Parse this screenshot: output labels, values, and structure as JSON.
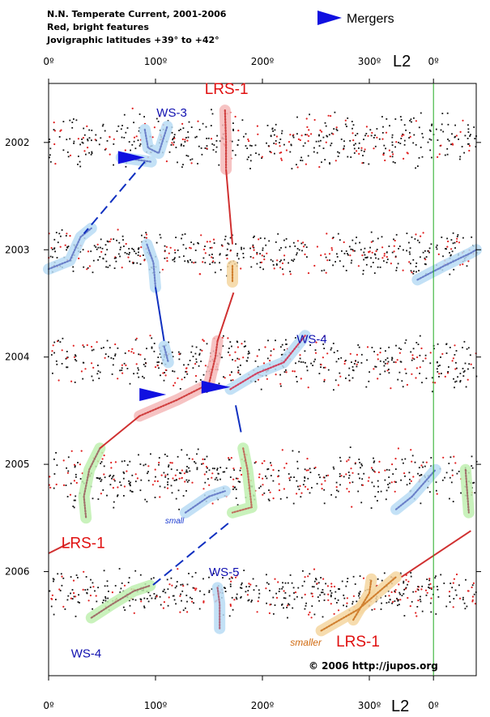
{
  "chart_data": {
    "type": "scatter",
    "header": {
      "line1": "N.N. Temperate Current, 2001-2006",
      "line2": "Red, bright features",
      "line3": "Jovigraphic latitudes +39° to +42°"
    },
    "legend": {
      "label": "Mergers",
      "color": "#1010e0"
    },
    "x_axis": {
      "name": "L2",
      "range": [
        0,
        400
      ],
      "ticks": [
        {
          "value": 0,
          "label": "0º"
        },
        {
          "value": 100,
          "label": "100º"
        },
        {
          "value": 200,
          "label": "200º"
        },
        {
          "value": 300,
          "label": "300º"
        },
        {
          "value": 360,
          "label": "0º"
        }
      ],
      "wrap_line_at": 360,
      "wrap_line_color": "#22aa22"
    },
    "y_axis": {
      "range": [
        2001.45,
        2006.97
      ],
      "ticks": [
        {
          "value": 2002,
          "label": "2002"
        },
        {
          "value": 2003,
          "label": "2003"
        },
        {
          "value": 2004,
          "label": "2004"
        },
        {
          "value": 2005,
          "label": "2005"
        },
        {
          "value": 2006,
          "label": "2006"
        }
      ]
    },
    "apparitions": [
      {
        "year_from": 2001.55,
        "year_to": 2002.4
      },
      {
        "year_from": 2002.7,
        "year_to": 2003.35
      },
      {
        "year_from": 2003.65,
        "year_to": 2004.45
      },
      {
        "year_from": 2004.7,
        "year_to": 2005.55
      },
      {
        "year_from": 2005.85,
        "year_to": 2006.55
      }
    ],
    "annotations": [
      {
        "id": "lrs1-top",
        "text": "LRS-1",
        "style": "red",
        "x": 146,
        "y": 2001.55
      },
      {
        "id": "ws3",
        "text": "WS-3",
        "style": "blue",
        "x": 101,
        "y": 2001.76
      },
      {
        "id": "ws4-mid",
        "text": "WS-4",
        "style": "blue",
        "x": 232,
        "y": 2003.87
      },
      {
        "id": "small",
        "text": "small",
        "style": "small-blue",
        "x": 109,
        "y": 2005.55
      },
      {
        "id": "lrs1-left",
        "text": "LRS-1",
        "style": "red",
        "x": 12,
        "y": 2005.78
      },
      {
        "id": "ws5",
        "text": "WS-5",
        "style": "blue",
        "x": 150,
        "y": 2006.04
      },
      {
        "id": "ws4-bottom",
        "text": "WS-4",
        "style": "blue",
        "x": 21,
        "y": 2006.8
      },
      {
        "id": "smaller",
        "text": "smaller",
        "style": "small-orange",
        "x": 226,
        "y": 2006.69
      },
      {
        "id": "lrs1-right",
        "text": "LRS-1",
        "style": "red",
        "x": 269,
        "y": 2006.7
      }
    ],
    "tracks": [
      {
        "name": "WS-3",
        "halo": "#b8dcf5",
        "color": "#6a7fc8",
        "points": [
          [
            90,
            2001.88
          ],
          [
            93,
            2002.05
          ],
          [
            103,
            2002.1
          ],
          [
            111,
            2001.85
          ]
        ]
      },
      {
        "name": "LRS-1",
        "halo": "#f5b8b8",
        "color": "#d04040",
        "points": [
          [
            165,
            2001.7
          ],
          [
            166,
            2002.0
          ],
          [
            166,
            2002.25
          ]
        ]
      },
      {
        "name": "merger-2002",
        "halo": "#b8dcf5",
        "color": "#6a7fc8",
        "points": [
          [
            68,
            2002.14
          ],
          [
            96,
            2002.18
          ]
        ]
      },
      {
        "name": "WS-3-2003",
        "halo": "#b8dcf5",
        "color": "#6a7fc8",
        "points": [
          [
            0,
            2003.18
          ],
          [
            20,
            2003.1
          ],
          [
            30,
            2002.88
          ],
          [
            40,
            2002.8
          ]
        ]
      },
      {
        "name": "WS-3b-2003",
        "halo": "#b8dcf5",
        "color": "#6a7fc8",
        "points": [
          [
            92,
            2002.95
          ],
          [
            98,
            2003.12
          ],
          [
            100,
            2003.35
          ]
        ]
      },
      {
        "name": "LRS-1-2003",
        "halo": "#f5d6a0",
        "color": "#d08030",
        "points": [
          [
            172,
            2003.15
          ],
          [
            172,
            2003.3
          ]
        ]
      },
      {
        "name": "WS-right-2003",
        "halo": "#b8dcf5",
        "color": "#6a7fc8",
        "points": [
          [
            345,
            2003.28
          ],
          [
            370,
            2003.15
          ],
          [
            395,
            2003.03
          ],
          [
            400,
            2003.0
          ]
        ]
      },
      {
        "name": "WS-4",
        "halo": "#b8dcf5",
        "color": "#d04060",
        "points": [
          [
            170,
            2004.3
          ],
          [
            195,
            2004.15
          ],
          [
            220,
            2004.05
          ],
          [
            240,
            2003.8
          ]
        ]
      },
      {
        "name": "WS-2004",
        "halo": "#b8dcf5",
        "color": "#6a7fc8",
        "points": [
          [
            108,
            2003.9
          ],
          [
            112,
            2004.05
          ]
        ]
      },
      {
        "name": "LRS-1-2004",
        "halo": "#f5b8b8",
        "color": "#d04040",
        "points": [
          [
            85,
            2004.55
          ],
          [
            120,
            2004.4
          ],
          [
            150,
            2004.25
          ],
          [
            156,
            2004.0
          ],
          [
            158,
            2003.85
          ]
        ]
      },
      {
        "name": "LRS-1-2005",
        "halo": "#bff0b0",
        "color": "#a0706a",
        "points": [
          [
            48,
            2004.85
          ],
          [
            38,
            2005.05
          ],
          [
            33,
            2005.3
          ],
          [
            35,
            2005.5
          ]
        ]
      },
      {
        "name": "WS-4-2005",
        "halo": "#bff0b0",
        "color": "#c07060",
        "points": [
          [
            182,
            2004.85
          ],
          [
            186,
            2005.05
          ],
          [
            190,
            2005.4
          ],
          [
            172,
            2005.45
          ]
        ]
      },
      {
        "name": "small-2005",
        "halo": "#b8dcf5",
        "color": "#6a7fc8",
        "points": [
          [
            128,
            2005.45
          ],
          [
            150,
            2005.3
          ],
          [
            165,
            2005.25
          ]
        ]
      },
      {
        "name": "WS-right-2005",
        "halo": "#b8dcf5",
        "color": "#6a7fc8",
        "points": [
          [
            325,
            2005.42
          ],
          [
            340,
            2005.3
          ],
          [
            362,
            2005.05
          ]
        ]
      },
      {
        "name": "LRS-1-2005r",
        "halo": "#bff0b0",
        "color": "#a0706a",
        "points": [
          [
            390,
            2005.05
          ],
          [
            393,
            2005.45
          ]
        ]
      },
      {
        "name": "WS-4-2006",
        "halo": "#bff0b0",
        "color": "#a0706a",
        "points": [
          [
            40,
            2006.43
          ],
          [
            60,
            2006.3
          ],
          [
            80,
            2006.18
          ],
          [
            95,
            2006.13
          ]
        ]
      },
      {
        "name": "WS-5",
        "halo": "#b8dcf5",
        "color": "#b06880",
        "points": [
          [
            158,
            2006.15
          ],
          [
            160,
            2006.3
          ],
          [
            160,
            2006.53
          ]
        ]
      },
      {
        "name": "LRS-1-2006",
        "halo": "#f5d6a0",
        "color": "#d08030",
        "points": [
          [
            255,
            2006.55
          ],
          [
            290,
            2006.35
          ],
          [
            325,
            2006.05
          ]
        ]
      },
      {
        "name": "LRS-1-2006b",
        "halo": "#f5d6a0",
        "color": "#d08030",
        "points": [
          [
            285,
            2006.45
          ],
          [
            300,
            2006.2
          ],
          [
            302,
            2006.07
          ]
        ]
      }
    ],
    "connectors": [
      {
        "color": "#d03030",
        "dash": false,
        "points": [
          [
            166,
            2002.25
          ],
          [
            172,
            2002.95
          ]
        ]
      },
      {
        "color": "#d03030",
        "dash": false,
        "points": [
          [
            173,
            2003.4
          ],
          [
            158,
            2003.85
          ]
        ]
      },
      {
        "color": "#d03030",
        "dash": false,
        "points": [
          [
            85,
            2004.55
          ],
          [
            48,
            2004.85
          ]
        ]
      },
      {
        "color": "#d03030",
        "dash": false,
        "points": [
          [
            0,
            2005.83
          ],
          [
            20,
            2005.73
          ]
        ]
      },
      {
        "color": "#d03030",
        "dash": false,
        "points": [
          [
            330,
            2006.05
          ],
          [
            395,
            2005.62
          ]
        ]
      },
      {
        "color": "#1030c0",
        "dash": true,
        "points": [
          [
            90,
            2002.18
          ],
          [
            33,
            2002.85
          ]
        ]
      },
      {
        "color": "#1030c0",
        "dash": false,
        "points": [
          [
            100,
            2003.35
          ],
          [
            108,
            2003.85
          ]
        ]
      },
      {
        "color": "#1030c0",
        "dash": false,
        "points": [
          [
            175,
            2004.45
          ],
          [
            180,
            2004.7
          ]
        ]
      },
      {
        "color": "#1030c0",
        "dash": true,
        "points": [
          [
            168,
            2005.55
          ],
          [
            97,
            2006.13
          ]
        ]
      }
    ],
    "merger_arrows": [
      {
        "x_tail": 65,
        "x_head": 90,
        "y": 2002.14
      },
      {
        "x_tail": 85,
        "x_head": 110,
        "y": 2004.35
      },
      {
        "x_tail": 143,
        "x_head": 170,
        "y": 2004.28
      }
    ],
    "credit": "© 2006  http://jupos.org"
  }
}
